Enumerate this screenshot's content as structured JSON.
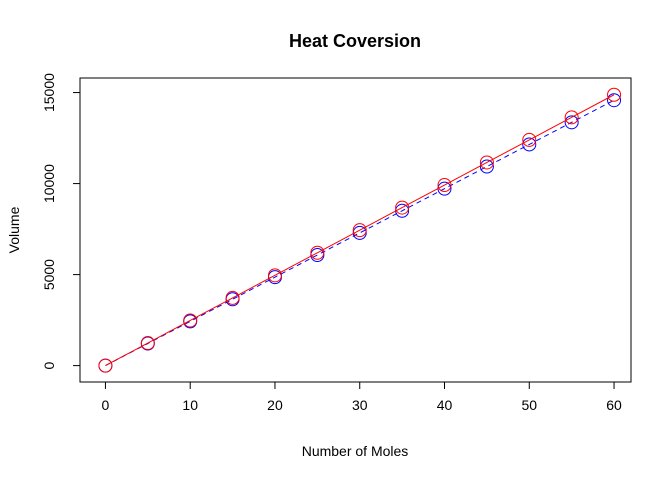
{
  "chart_data": {
    "type": "line",
    "title": "Heat Coversion",
    "xlabel": "Number of Moles",
    "ylabel": "Volume",
    "xlim": [
      -3,
      62
    ],
    "ylim": [
      -900,
      15800
    ],
    "xticks": [
      0,
      10,
      20,
      30,
      40,
      50,
      60
    ],
    "yticks": [
      0,
      5000,
      10000,
      15000
    ],
    "grid": false,
    "x": [
      0,
      5,
      10,
      15,
      20,
      25,
      30,
      35,
      40,
      45,
      50,
      55,
      60
    ],
    "series": [
      {
        "color": "#ff0000",
        "line_style": "solid",
        "marker": "open-circle",
        "values": [
          0,
          1240,
          2480,
          3720,
          4960,
          6200,
          7440,
          8680,
          9920,
          11160,
          12400,
          13640,
          14880
        ]
      },
      {
        "color": "#0000ff",
        "line_style": "dashed",
        "marker": "open-circle",
        "values": [
          0,
          1215,
          2430,
          3645,
          4860,
          6075,
          7290,
          8505,
          9720,
          10935,
          12150,
          13365,
          14580
        ]
      }
    ]
  }
}
